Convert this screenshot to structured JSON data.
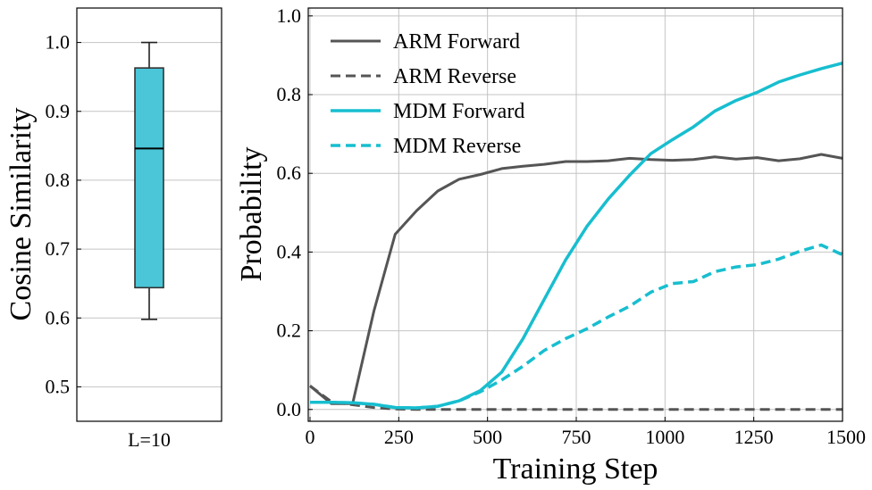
{
  "chart_data": [
    {
      "type": "box",
      "title": "",
      "xlabel": "",
      "ylabel": "Cosine Similarity",
      "categories": [
        "L=10"
      ],
      "ylim": [
        0.45,
        1.05
      ],
      "yticks": [
        0.5,
        0.6,
        0.7,
        0.8,
        0.9,
        1.0
      ],
      "ytick_labels": [
        "0.5",
        "0.6",
        "0.7",
        "0.8",
        "0.9",
        "1.0"
      ],
      "grid": true,
      "box": {
        "whisker_low": 0.598,
        "q1": 0.644,
        "median": 0.846,
        "q3": 0.963,
        "whisker_high": 1.0
      },
      "color": "#4ac6d8"
    },
    {
      "type": "line",
      "title": "",
      "xlabel": "Training Step",
      "ylabel": "Probability",
      "xlim": [
        -5,
        1500
      ],
      "ylim": [
        -0.03,
        1.02
      ],
      "xticks": [
        0,
        250,
        500,
        750,
        1000,
        1250,
        1500
      ],
      "xtick_labels": [
        "0",
        "250",
        "500",
        "750",
        "1000",
        "1250",
        "1500"
      ],
      "yticks": [
        0.0,
        0.2,
        0.4,
        0.6,
        0.8,
        1.0
      ],
      "ytick_labels": [
        "0.0",
        "0.2",
        "0.4",
        "0.6",
        "0.8",
        "1.0"
      ],
      "grid": true,
      "legend_position": "top-left",
      "series": [
        {
          "name": "ARM Forward",
          "color": "#555555",
          "style": "solid",
          "x": [
            0,
            60,
            120,
            180,
            240,
            300,
            360,
            420,
            480,
            540,
            600,
            660,
            720,
            780,
            840,
            900,
            960,
            1020,
            1080,
            1140,
            1200,
            1260,
            1320,
            1380,
            1440,
            1500
          ],
          "y": [
            0.06,
            0.015,
            0.015,
            0.25,
            0.445,
            0.505,
            0.555,
            0.585,
            0.597,
            0.612,
            0.618,
            0.623,
            0.63,
            0.63,
            0.632,
            0.638,
            0.635,
            0.633,
            0.635,
            0.642,
            0.636,
            0.64,
            0.632,
            0.637,
            0.648,
            0.638
          ]
        },
        {
          "name": "ARM Reverse",
          "color": "#555555",
          "style": "dashed",
          "x": [
            0,
            60,
            120,
            180,
            240,
            300,
            360,
            420,
            480,
            540,
            600,
            660,
            720,
            780,
            840,
            900,
            960,
            1020,
            1080,
            1140,
            1200,
            1260,
            1320,
            1380,
            1440,
            1500
          ],
          "y": [
            0.06,
            0.02,
            0.012,
            0.005,
            0.001,
            0.0,
            0.0,
            0.0,
            0.0,
            0.0,
            0.0,
            0.0,
            0.0,
            0.0,
            0.0,
            0.0,
            0.0,
            0.0,
            0.0,
            0.0,
            0.0,
            0.0,
            0.0,
            0.0,
            0.0,
            0.0
          ]
        },
        {
          "name": "MDM Forward",
          "color": "#17becf",
          "style": "solid",
          "x": [
            0,
            60,
            120,
            180,
            240,
            300,
            360,
            420,
            480,
            540,
            600,
            660,
            720,
            780,
            840,
            900,
            960,
            1020,
            1080,
            1140,
            1200,
            1260,
            1320,
            1380,
            1440,
            1500
          ],
          "y": [
            0.018,
            0.018,
            0.017,
            0.013,
            0.005,
            0.004,
            0.008,
            0.022,
            0.048,
            0.095,
            0.18,
            0.28,
            0.38,
            0.465,
            0.535,
            0.595,
            0.65,
            0.685,
            0.718,
            0.758,
            0.785,
            0.806,
            0.832,
            0.85,
            0.866,
            0.88
          ]
        },
        {
          "name": "MDM Reverse",
          "color": "#17becf",
          "style": "dashed",
          "x": [
            0,
            60,
            120,
            180,
            240,
            300,
            360,
            420,
            480,
            540,
            600,
            660,
            720,
            780,
            840,
            900,
            960,
            1020,
            1080,
            1140,
            1200,
            1260,
            1320,
            1380,
            1440,
            1500
          ],
          "y": [
            0.018,
            0.018,
            0.017,
            0.013,
            0.005,
            0.004,
            0.008,
            0.022,
            0.045,
            0.075,
            0.11,
            0.15,
            0.18,
            0.205,
            0.235,
            0.262,
            0.298,
            0.32,
            0.325,
            0.35,
            0.362,
            0.368,
            0.382,
            0.402,
            0.418,
            0.393
          ]
        }
      ]
    }
  ]
}
